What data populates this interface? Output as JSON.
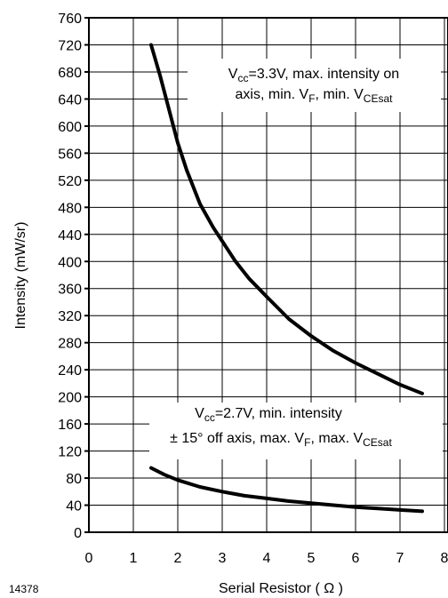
{
  "figure_id": "14378",
  "chart_data": {
    "type": "line",
    "title": "",
    "xlabel": "Serial Resistor ( Ω )",
    "ylabel": "Intensity (mW/sr)",
    "xlim": [
      0,
      8
    ],
    "ylim": [
      0,
      760
    ],
    "x_ticks": [
      "0",
      "1",
      "2",
      "3",
      "4",
      "5",
      "6",
      "7",
      "8"
    ],
    "y_ticks": [
      "0",
      "40",
      "80",
      "120",
      "160",
      "200",
      "240",
      "280",
      "320",
      "360",
      "400",
      "440",
      "480",
      "520",
      "560",
      "600",
      "640",
      "680",
      "720",
      "760"
    ],
    "grid": true,
    "series": [
      {
        "x": [
          1.4,
          1.6,
          1.8,
          2.0,
          2.2,
          2.5,
          2.8,
          3.0,
          3.3,
          3.6,
          4.0,
          4.5,
          5.0,
          5.5,
          6.0,
          6.5,
          7.0,
          7.5
        ],
        "y": [
          720,
          675,
          625,
          575,
          535,
          485,
          450,
          430,
          400,
          375,
          348,
          315,
          290,
          268,
          250,
          234,
          218,
          205
        ]
      },
      {
        "x": [
          1.4,
          1.7,
          2.0,
          2.5,
          3.0,
          3.5,
          4.0,
          4.5,
          5.0,
          5.5,
          6.0,
          6.5,
          7.0,
          7.5
        ],
        "y": [
          95,
          85,
          77,
          67,
          60,
          54,
          50,
          46,
          43,
          40,
          37,
          35,
          33,
          31
        ]
      }
    ],
    "annotations": [
      {
        "line1": {
          "p1": "V",
          "p1_sub": "cc",
          "p2": "=3.3V, max. intensity on"
        },
        "line2": {
          "p1": "axis, min. V",
          "p1_sub": "F",
          "p2": ", min. V",
          "p2_sub": "CEsat"
        }
      },
      {
        "line1": {
          "p1": "V",
          "p1_sub": "cc",
          "p2": "=2.7V, min. intensity"
        },
        "line2": {
          "p1": "± 15° off axis, max. V",
          "p1_sub": "F",
          "p2": ", max. V",
          "p2_sub": "CEsat"
        }
      }
    ]
  }
}
